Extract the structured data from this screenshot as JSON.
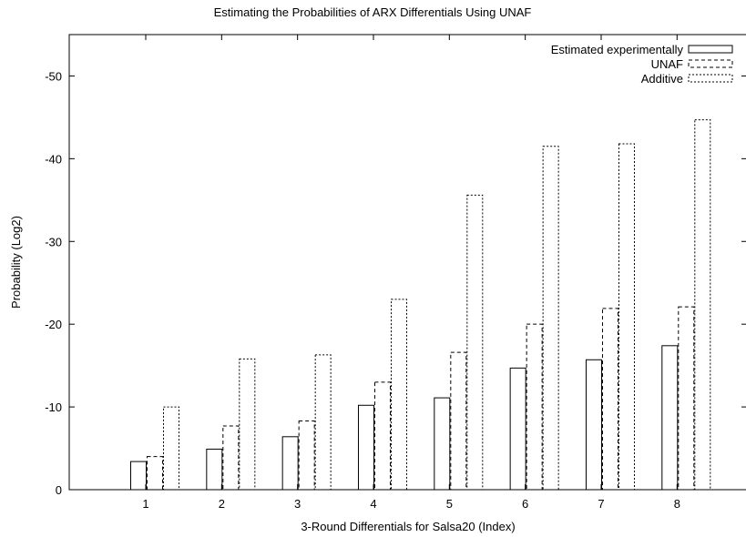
{
  "chart_data": {
    "type": "bar",
    "title": "Estimating the Probabilities of ARX Differentials Using UNAF",
    "xlabel": "3-Round Differentials for Salsa20 (Index)",
    "ylabel": "Probability (Log2)",
    "categories": [
      "1",
      "2",
      "3",
      "4",
      "5",
      "6",
      "7",
      "8"
    ],
    "ylim": [
      0,
      -55
    ],
    "y_ticks": [
      0,
      -10,
      -20,
      -30,
      -40,
      -50
    ],
    "y_tick_labels": [
      "0",
      "-10",
      "-20",
      "-30",
      "-40",
      "-50"
    ],
    "legend_position": "top-right",
    "grid": false,
    "series": [
      {
        "name": "Estimated experimentally",
        "style": "solid",
        "values": [
          -3.4,
          -4.9,
          -6.4,
          -10.2,
          -11.1,
          -14.7,
          -15.7,
          -17.4
        ]
      },
      {
        "name": "UNAF",
        "style": "dashed",
        "values": [
          -4.0,
          -7.7,
          -8.3,
          -13.0,
          -16.6,
          -20.0,
          -21.9,
          -22.1
        ]
      },
      {
        "name": "Additive",
        "style": "dotted",
        "values": [
          -10.0,
          -15.8,
          -16.3,
          -23.0,
          -35.6,
          -41.5,
          -41.8,
          -44.7
        ]
      }
    ]
  }
}
